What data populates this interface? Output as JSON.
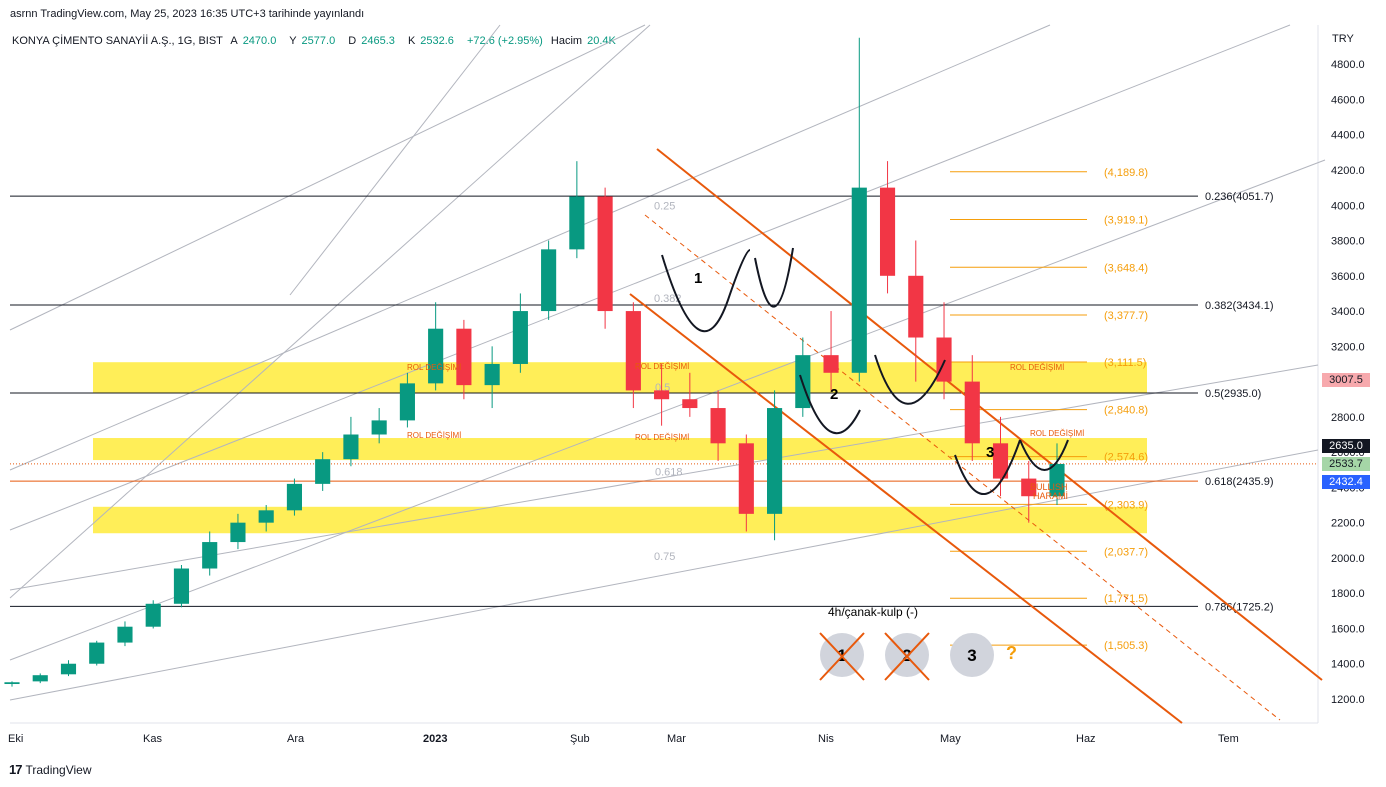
{
  "header": {
    "publisher": "asrnn TradingView.com, May 25, 2023 16:35 UTC+3 tarihinde yayınlandı",
    "symbol": "KONYA ÇİMENTO SANAYİİ A.Ş., 1G, BIST",
    "open_label": "A",
    "open": "2470.0",
    "high_label": "Y",
    "high": "2577.0",
    "low_label": "D",
    "low": "2465.3",
    "close_label": "K",
    "close": "2532.6",
    "change": "+72.6 (+2.95%)",
    "volume_label": "Hacim",
    "volume": "20.4K",
    "currency": "TRY"
  },
  "footer": {
    "brand": "TradingView",
    "brand_icon": "tradingview-logo-icon"
  },
  "colors": {
    "bull": "#089981",
    "bear": "#f23645",
    "zone": "#ffeb3b",
    "fib": "#f59e0b",
    "channel": "#e8590c",
    "gray_line": "#b2b5be",
    "current_tag": "#131722"
  },
  "chart_data": {
    "type": "candlestick",
    "title": "KONYA ÇİMENTO SANAYİİ A.Ş., 1G, BIST",
    "ylim": [
      1150,
      4850
    ],
    "y_ticks": [
      "1200.0",
      "1400.0",
      "1600.0",
      "1800.0",
      "2000.0",
      "2200.0",
      "2400.0",
      "2600.0",
      "2800.0",
      "3000.0",
      "3200.0",
      "3400.0",
      "3600.0",
      "3800.0",
      "4000.0",
      "4200.0",
      "4400.0",
      "4600.0",
      "4800.0"
    ],
    "x_ticks": [
      "Eki",
      "Kas",
      "Ara",
      "2023",
      "Şub",
      "Mar",
      "Nis",
      "May",
      "Haz",
      "Tem"
    ],
    "candles": [
      {
        "date": "2022-10-03",
        "o": 1285,
        "h": 1300,
        "l": 1270,
        "c": 1295
      },
      {
        "date": "2022-10-10",
        "o": 1300,
        "h": 1345,
        "l": 1290,
        "c": 1335
      },
      {
        "date": "2022-10-17",
        "o": 1340,
        "h": 1420,
        "l": 1330,
        "c": 1400
      },
      {
        "date": "2022-10-24",
        "o": 1400,
        "h": 1530,
        "l": 1390,
        "c": 1520
      },
      {
        "date": "2022-10-31",
        "o": 1520,
        "h": 1640,
        "l": 1500,
        "c": 1610
      },
      {
        "date": "2022-11-07",
        "o": 1610,
        "h": 1760,
        "l": 1600,
        "c": 1740
      },
      {
        "date": "2022-11-14",
        "o": 1740,
        "h": 1960,
        "l": 1720,
        "c": 1940
      },
      {
        "date": "2022-11-21",
        "o": 1940,
        "h": 2150,
        "l": 1900,
        "c": 2090
      },
      {
        "date": "2022-11-28",
        "o": 2090,
        "h": 2250,
        "l": 2050,
        "c": 2200
      },
      {
        "date": "2022-12-05",
        "o": 2200,
        "h": 2300,
        "l": 2150,
        "c": 2270
      },
      {
        "date": "2022-12-12",
        "o": 2270,
        "h": 2450,
        "l": 2240,
        "c": 2420
      },
      {
        "date": "2022-12-19",
        "o": 2420,
        "h": 2600,
        "l": 2380,
        "c": 2560
      },
      {
        "date": "2022-12-26",
        "o": 2560,
        "h": 2800,
        "l": 2520,
        "c": 2700
      },
      {
        "date": "2023-01-02",
        "o": 2700,
        "h": 2850,
        "l": 2650,
        "c": 2780
      },
      {
        "date": "2023-01-09",
        "o": 2780,
        "h": 3050,
        "l": 2740,
        "c": 2990
      },
      {
        "date": "2023-01-16",
        "o": 2990,
        "h": 3450,
        "l": 2950,
        "c": 3300
      },
      {
        "date": "2023-01-23",
        "o": 3300,
        "h": 3350,
        "l": 2900,
        "c": 2980
      },
      {
        "date": "2023-01-30",
        "o": 2980,
        "h": 3200,
        "l": 2850,
        "c": 3100
      },
      {
        "date": "2023-02-06",
        "o": 3100,
        "h": 3500,
        "l": 3050,
        "c": 3400
      },
      {
        "date": "2023-02-13",
        "o": 3400,
        "h": 3800,
        "l": 3350,
        "c": 3750
      },
      {
        "date": "2023-02-20",
        "o": 3750,
        "h": 4250,
        "l": 3700,
        "c": 4050
      },
      {
        "date": "2023-02-27",
        "o": 4050,
        "h": 4100,
        "l": 3300,
        "c": 3400
      },
      {
        "date": "2023-03-06",
        "o": 3400,
        "h": 3450,
        "l": 2850,
        "c": 2950
      },
      {
        "date": "2023-03-13",
        "o": 2950,
        "h": 3100,
        "l": 2750,
        "c": 2900
      },
      {
        "date": "2023-03-20",
        "o": 2900,
        "h": 3050,
        "l": 2800,
        "c": 2850
      },
      {
        "date": "2023-03-27",
        "o": 2850,
        "h": 2950,
        "l": 2550,
        "c": 2650
      },
      {
        "date": "2023-04-03",
        "o": 2650,
        "h": 2700,
        "l": 2150,
        "c": 2250
      },
      {
        "date": "2023-04-10",
        "o": 2250,
        "h": 2950,
        "l": 2100,
        "c": 2850
      },
      {
        "date": "2023-04-17",
        "o": 2850,
        "h": 3250,
        "l": 2800,
        "c": 3150
      },
      {
        "date": "2023-04-24",
        "o": 3150,
        "h": 3400,
        "l": 2950,
        "c": 3050
      },
      {
        "date": "2023-05-01",
        "o": 3050,
        "h": 4950,
        "l": 3000,
        "c": 4100
      },
      {
        "date": "2023-05-08",
        "o": 4100,
        "h": 4250,
        "l": 3500,
        "c": 3600
      },
      {
        "date": "2023-05-15",
        "o": 3600,
        "h": 3800,
        "l": 3000,
        "c": 3250
      },
      {
        "date": "2023-05-22",
        "o": 3250,
        "h": 3450,
        "l": 2900,
        "c": 3000
      },
      {
        "date": "2023-05-29",
        "o": 3000,
        "h": 3150,
        "l": 2550,
        "c": 2650
      },
      {
        "date": "2023-06-05",
        "o": 2650,
        "h": 2800,
        "l": 2350,
        "c": 2450
      },
      {
        "date": "2023-06-12",
        "o": 2450,
        "h": 2550,
        "l": 2200,
        "c": 2350
      },
      {
        "date": "2023-06-19",
        "o": 2350,
        "h": 2650,
        "l": 2300,
        "c": 2533
      }
    ],
    "fib_retracements": [
      {
        "label": "0.236(4051.7)",
        "value": 4051.7
      },
      {
        "label": "0.382(3434.1)",
        "value": 3434.1
      },
      {
        "label": "0.5(2935.0)",
        "value": 2935.0
      },
      {
        "label": "0.618(2435.9)",
        "value": 2435.9
      },
      {
        "label": "0.786(1725.2)",
        "value": 1725.2
      }
    ],
    "fib_targets": [
      {
        "label": "(4,189.8)",
        "value": 4189.8
      },
      {
        "label": "(3,919.1)",
        "value": 3919.1
      },
      {
        "label": "(3,648.4)",
        "value": 3648.4
      },
      {
        "label": "(3,377.7)",
        "value": 3377.7
      },
      {
        "label": "(3,111.5)",
        "value": 3111.5
      },
      {
        "label": "(2,840.8)",
        "value": 2840.8
      },
      {
        "label": "(2,574.6)",
        "value": 2574.6
      },
      {
        "label": "(2,303.9)",
        "value": 2303.9
      },
      {
        "label": "(2,037.7)",
        "value": 2037.7
      },
      {
        "label": "(1,771.5)",
        "value": 1771.5
      },
      {
        "label": "(1,505.3)",
        "value": 1505.3
      }
    ],
    "pitchfork_labels": [
      {
        "label": "0.25",
        "value": 4000
      },
      {
        "label": "0.382",
        "value": 3475
      },
      {
        "label": "0.5",
        "value": 2970
      },
      {
        "label": "0.618",
        "value": 2490
      },
      {
        "label": "0.75",
        "value": 2010
      }
    ],
    "zones": [
      {
        "label": "ROL DEĞİŞİMİ",
        "top": 3110,
        "bottom": 2935
      },
      {
        "label": "ROL DEĞİŞİMİ",
        "top": 2680,
        "bottom": 2555
      },
      {
        "label": "",
        "top": 2290,
        "bottom": 2140
      }
    ],
    "annotations": {
      "pattern_numbers": [
        "1",
        "2",
        "3"
      ],
      "bullish_harami": [
        "BULLISH",
        "HARAMİ"
      ],
      "zone_label": "ROL DEĞİŞİMİ",
      "cup_handle_title": "4h/çanak-kulp (-)",
      "circles": [
        "1",
        "2",
        "3"
      ],
      "question": "?"
    },
    "price_tags": [
      {
        "label": "3007.5",
        "value": 3007.5,
        "color": "#f7a9ad",
        "text_color": "#131722"
      },
      {
        "label": "2635.0",
        "value": 2635.0,
        "color": "#131722",
        "text_color": "#ffffff"
      },
      {
        "label": "2533.7",
        "value": 2533.7,
        "color": "#a5d6a7",
        "text_color": "#131722"
      },
      {
        "label": "2432.4",
        "value": 2432.4,
        "color": "#2962ff",
        "text_color": "#ffffff"
      }
    ]
  }
}
